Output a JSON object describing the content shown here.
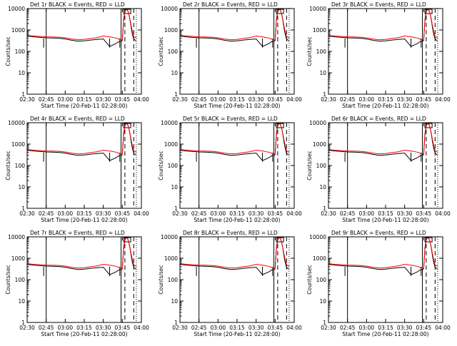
{
  "colors": {
    "events": "#000000",
    "lld": "#ff0000",
    "background": "#ffffff"
  },
  "chart_data": [
    {
      "type": "line",
      "title": "Det 1r BLACK = Events, RED = LLD",
      "xlabel": "Start Time (20-Feb-11 02:28:00)",
      "ylabel": "Counts/sec",
      "yscale": "log",
      "ylim": [
        1,
        10000
      ],
      "xlim_label": [
        "02:30",
        "04:00"
      ],
      "x_ticks": [
        "02:30",
        "02:45",
        "03:00",
        "03:15",
        "03:30",
        "03:45",
        "04:00"
      ],
      "y_ticks": [
        "1",
        "10",
        "100",
        "1000",
        "10000"
      ]
    },
    {
      "type": "line",
      "title": "Det 2r BLACK = Events, RED = LLD",
      "xlabel": "Start Time (20-Feb-11 02:28:00)",
      "ylabel": "Counts/sec",
      "yscale": "log",
      "ylim": [
        1,
        10000
      ],
      "x_ticks": [
        "02:30",
        "02:45",
        "03:00",
        "03:15",
        "03:30",
        "03:45",
        "04:00"
      ],
      "y_ticks": [
        "1",
        "10",
        "100",
        "1000",
        "10000"
      ]
    },
    {
      "type": "line",
      "title": "Det 3r BLACK = Events, RED = LLD",
      "xlabel": "Start Time (20-Feb-11 02:28:00)",
      "ylabel": "Counts/sec",
      "yscale": "log",
      "ylim": [
        1,
        10000
      ],
      "x_ticks": [
        "02:30",
        "02:45",
        "03:00",
        "03:15",
        "03:30",
        "03:45",
        "04:00"
      ],
      "y_ticks": [
        "1",
        "10",
        "100",
        "1000",
        "10000"
      ]
    },
    {
      "type": "line",
      "title": "Det 4r BLACK = Events, RED = LLD",
      "xlabel": "Start Time (20-Feb-11 02:28:00)",
      "ylabel": "Counts/sec",
      "yscale": "log",
      "ylim": [
        1,
        10000
      ],
      "x_ticks": [
        "02:30",
        "02:45",
        "03:00",
        "03:15",
        "03:30",
        "03:45",
        "04:00"
      ],
      "y_ticks": [
        "1",
        "10",
        "100",
        "1000",
        "10000"
      ]
    },
    {
      "type": "line",
      "title": "Det 5r BLACK = Events, RED = LLD",
      "xlabel": "Start Time (20-Feb-11 02:28:00)",
      "ylabel": "Counts/sec",
      "yscale": "log",
      "ylim": [
        1,
        10000
      ],
      "x_ticks": [
        "02:30",
        "02:45",
        "03:00",
        "03:15",
        "03:30",
        "03:45",
        "04:00"
      ],
      "y_ticks": [
        "1",
        "10",
        "100",
        "1000",
        "10000"
      ]
    },
    {
      "type": "line",
      "title": "Det 6r BLACK = Events, RED = LLD",
      "xlabel": "Start Time (20-Feb-11 02:28:00)",
      "ylabel": "Counts/sec",
      "yscale": "log",
      "ylim": [
        1,
        10000
      ],
      "x_ticks": [
        "02:30",
        "02:45",
        "03:00",
        "03:15",
        "03:30",
        "03:45",
        "04:00"
      ],
      "y_ticks": [
        "1",
        "10",
        "100",
        "1000",
        "10000"
      ]
    },
    {
      "type": "line",
      "title": "Det 7r BLACK = Events, RED = LLD",
      "xlabel": "Start Time (20-Feb-11 02:28:00)",
      "ylabel": "Counts/sec",
      "yscale": "log",
      "ylim": [
        1,
        10000
      ],
      "x_ticks": [
        "02:30",
        "02:45",
        "03:00",
        "03:15",
        "03:30",
        "03:45",
        "04:00"
      ],
      "y_ticks": [
        "1",
        "10",
        "100",
        "1000",
        "10000"
      ]
    },
    {
      "type": "line",
      "title": "Det 8r BLACK = Events, RED = LLD",
      "xlabel": "Start Time (20-Feb-11 02:28:00)",
      "ylabel": "Counts/sec",
      "yscale": "log",
      "ylim": [
        1,
        10000
      ],
      "x_ticks": [
        "02:30",
        "02:45",
        "03:00",
        "03:15",
        "03:30",
        "03:45",
        "04:00"
      ],
      "y_ticks": [
        "1",
        "10",
        "100",
        "1000",
        "10000"
      ]
    },
    {
      "type": "line",
      "title": "Det 9r BLACK = Events, RED = LLD",
      "xlabel": "Start Time (20-Feb-11 02:28:00)",
      "ylabel": "Counts/sec",
      "yscale": "log",
      "ylim": [
        1,
        10000
      ],
      "x_ticks": [
        "02:30",
        "02:45",
        "03:00",
        "03:15",
        "03:30",
        "03:45",
        "04:00"
      ],
      "y_ticks": [
        "1",
        "10",
        "100",
        "1000",
        "10000"
      ]
    }
  ],
  "series_model": {
    "x_minutes_from_start": [
      0,
      5,
      10,
      15,
      20,
      25,
      30,
      35,
      40,
      45,
      50,
      55,
      60,
      65,
      70,
      72,
      74,
      75,
      76,
      77,
      78,
      79,
      80,
      81,
      82,
      83,
      84,
      86
    ],
    "events": [
      520,
      480,
      450,
      430,
      420,
      410,
      380,
      330,
      300,
      310,
      340,
      360,
      380,
      170,
      230,
      280,
      300,
      320,
      3000,
      8000,
      10000,
      9000,
      6000,
      3000,
      1200,
      600,
      380,
      300
    ],
    "lld": [
      560,
      520,
      500,
      480,
      470,
      460,
      430,
      380,
      350,
      360,
      400,
      440,
      520,
      480,
      420,
      380,
      350,
      330,
      2500,
      7000,
      9000,
      8500,
      6000,
      3200,
      1500,
      800,
      500,
      420
    ],
    "event_markers_minutes": [
      13,
      65,
      73
    ],
    "solid_vline_minutes": [
      15,
      74
    ],
    "dashed_vline_minutes": [
      77,
      84
    ],
    "dotted_vline_minutes": [
      86
    ]
  }
}
